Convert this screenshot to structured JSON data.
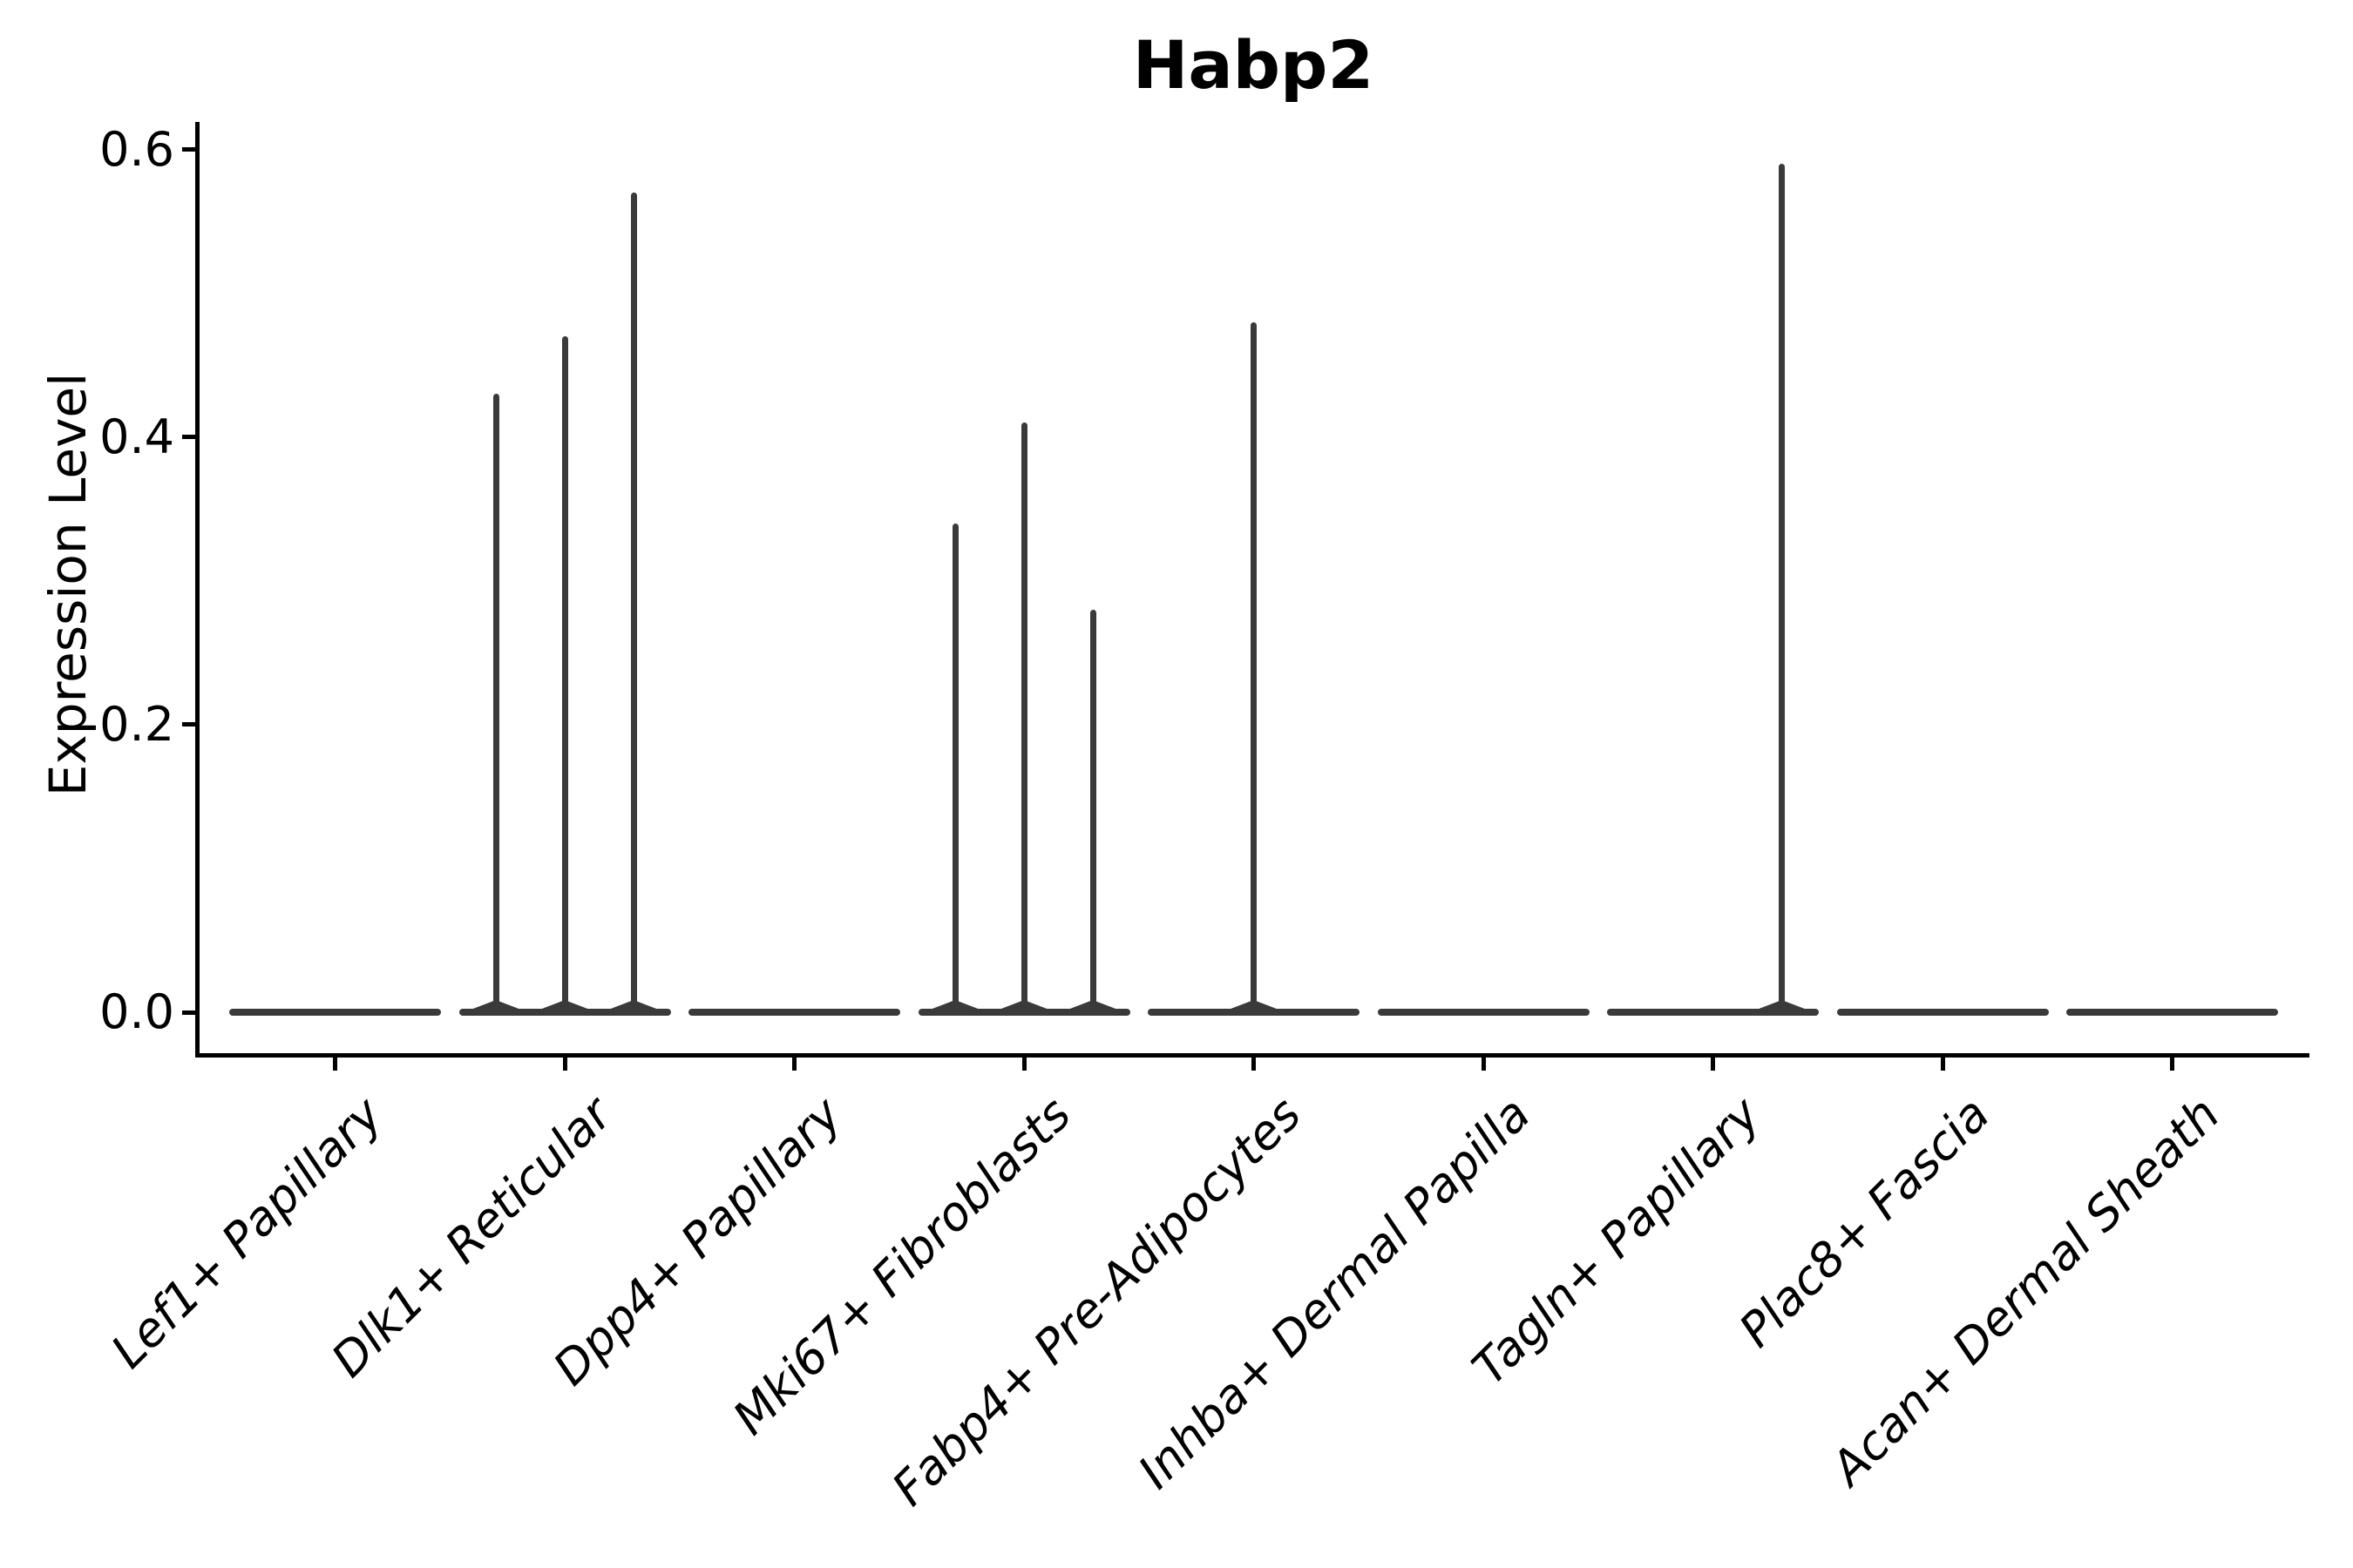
{
  "chart_data": {
    "type": "violin",
    "title": "Habp2",
    "ylabel": "Expression Level",
    "xlabel": "",
    "ylim": [
      -0.03,
      0.62
    ],
    "grid": false,
    "legend": null,
    "yticks": [
      {
        "value": 0.0,
        "label": "0.0"
      },
      {
        "value": 0.2,
        "label": "0.2"
      },
      {
        "value": 0.4,
        "label": "0.4"
      },
      {
        "value": 0.6,
        "label": "0.6"
      }
    ],
    "categories": [
      "Lef1+ Papillary",
      "Dlk1+ Reticular",
      "Dpp4+ Papillary",
      "Mki67+ Fibroblasts",
      "Fabp4+ Pre-Adipocytes",
      "Inhba+ Dermal Papilla",
      "Tagln+ Papillary",
      "Plac8+ Fascia",
      "Acan+ Dermal Sheath"
    ],
    "groups_per_category": 3,
    "violins": [
      {
        "category": "Lef1+ Papillary",
        "spikes": [
          0,
          0,
          0
        ]
      },
      {
        "category": "Dlk1+ Reticular",
        "spikes": [
          0.43,
          0.47,
          0.57
        ]
      },
      {
        "category": "Dpp4+ Papillary",
        "spikes": [
          0,
          0,
          0
        ]
      },
      {
        "category": "Mki67+ Fibroblasts",
        "spikes": [
          0.34,
          0.41,
          0.28
        ]
      },
      {
        "category": "Fabp4+ Pre-Adipocytes",
        "spikes": [
          0,
          0.48,
          0
        ]
      },
      {
        "category": "Inhba+ Dermal Papilla",
        "spikes": [
          0,
          0,
          0
        ]
      },
      {
        "category": "Tagln+ Papillary",
        "spikes": [
          0,
          0,
          0.59
        ]
      },
      {
        "category": "Plac8+ Fascia",
        "spikes": [
          0,
          0,
          0
        ]
      },
      {
        "category": "Acan+ Dermal Sheath",
        "spikes": [
          0,
          0,
          0
        ]
      }
    ],
    "colors": {
      "violin": "#3a3a3a",
      "axis": "#000000",
      "text": "#000000",
      "background": "#ffffff"
    }
  }
}
